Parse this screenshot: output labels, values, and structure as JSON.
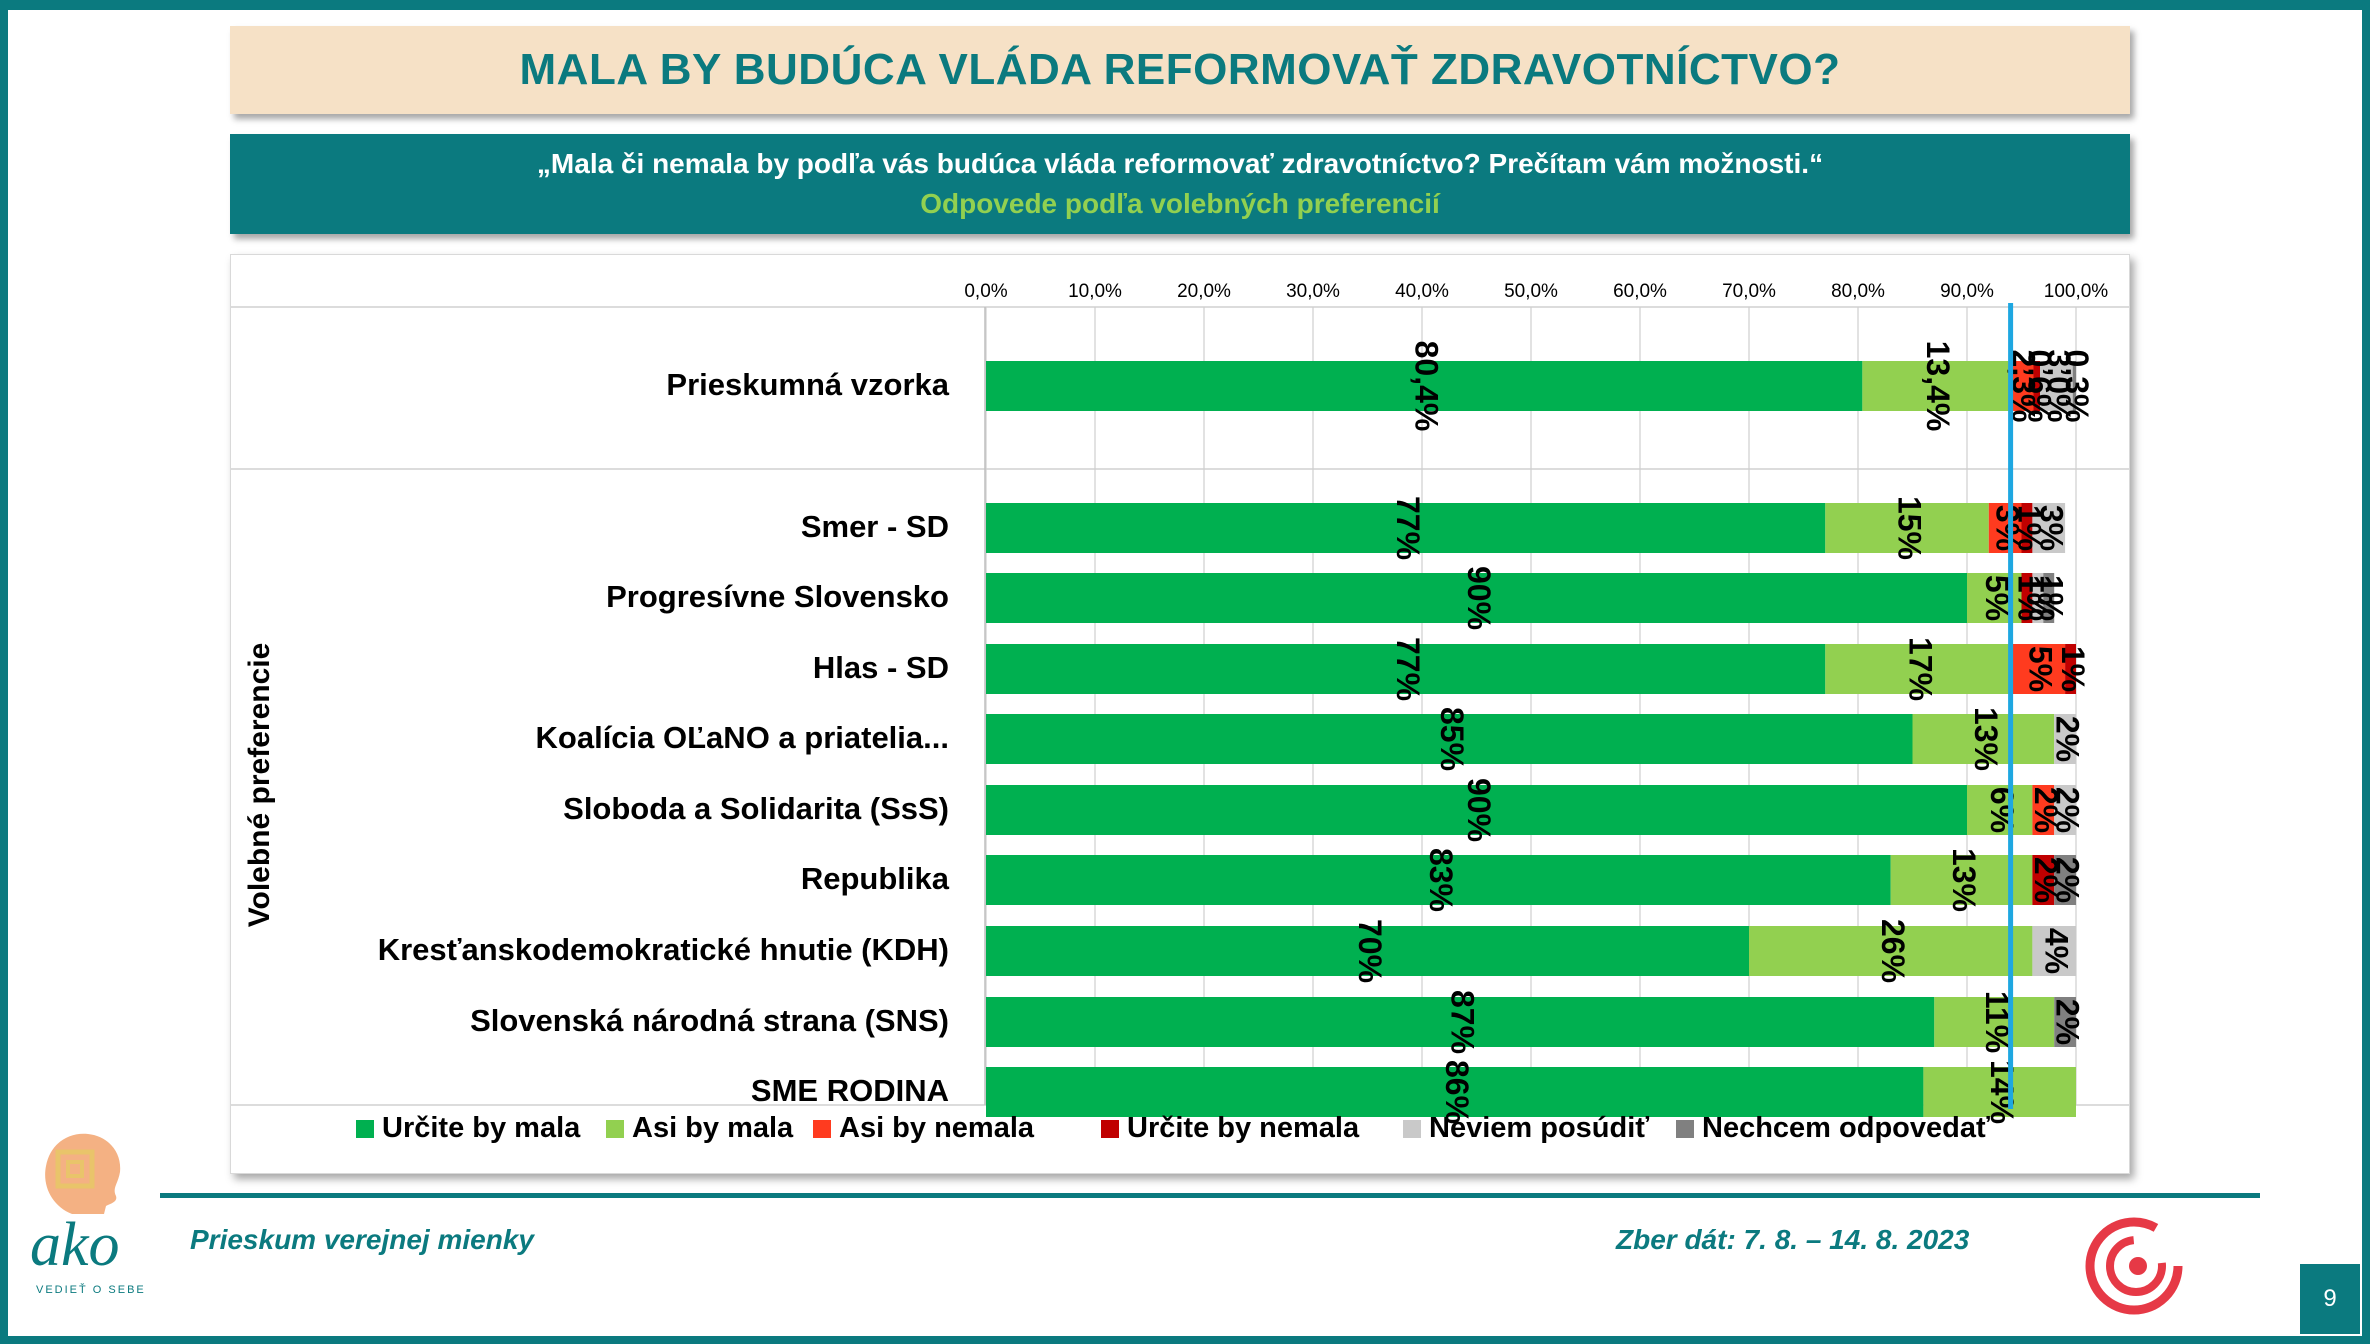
{
  "header": {
    "title": "MALA BY BUDÚCA VLÁDA REFORMOVAŤ ZDRAVOTNÍCTVO?",
    "question": "„Mala či nemala by podľa vás budúca vláda reformovať zdravotníctvo? Prečítam vám možnosti.“",
    "subtitle": "Odpovede podľa volebných preferencií"
  },
  "footer": {
    "left": "Prieskum verejnej mienky",
    "right": "Zber dát: 7. 8. – 14. 8. 2023",
    "page": "9",
    "logo": "ako",
    "logo_tagline": "VEDIEŤ O SEBE"
  },
  "colors": {
    "teal": "#0b7a7f",
    "title_bg": "#f6e1c6",
    "subtitle_green": "#92d050",
    "reference_line": "#1ea7e1"
  },
  "chart_data": {
    "type": "bar",
    "orientation": "horizontal",
    "stacked": true,
    "xlim": [
      0,
      100
    ],
    "x_ticks": [
      "0,0%",
      "10,0%",
      "20,0%",
      "30,0%",
      "40,0%",
      "50,0%",
      "60,0%",
      "70,0%",
      "80,0%",
      "90,0%",
      "100,0%"
    ],
    "grid": true,
    "legend_position": "bottom",
    "group_label": "Volebné preferencie",
    "categories": [
      "Prieskumná vzorka",
      "Smer - SD",
      "Progresívne Slovensko",
      "Hlas - SD",
      "Koalícia OĽaNO a priatelia...",
      "Sloboda a Solidarita (SsS)",
      "Republika",
      "Kresťanskodemokratické hnutie (KDH)",
      "Slovenská národná strana (SNS)",
      "SME RODINA"
    ],
    "series": [
      {
        "name": "Určite by mala",
        "color": "#00b050",
        "values": [
          80.4,
          77,
          90,
          77,
          85,
          90,
          83,
          70,
          87,
          86
        ],
        "labels": [
          "80,4%",
          "77%",
          "90%",
          "77%",
          "85%",
          "90%",
          "83%",
          "70%",
          "87%",
          "86%"
        ]
      },
      {
        "name": "Asi by mala",
        "color": "#92d050",
        "values": [
          13.4,
          15,
          5,
          17,
          13,
          6,
          13,
          26,
          11,
          14
        ],
        "labels": [
          "13,4%",
          "15%",
          "5%",
          "17%",
          "13%",
          "6%",
          "13%",
          "26%",
          "11%",
          "14%"
        ]
      },
      {
        "name": "Asi by nemala",
        "color": "#ff3b1f",
        "values": [
          2.3,
          3,
          0,
          5,
          0,
          2,
          0,
          0,
          0,
          0
        ],
        "labels": [
          "2,3%",
          "3%",
          "",
          "5%",
          "",
          "2%",
          "",
          "",
          "",
          ""
        ]
      },
      {
        "name": "Určite by nemala",
        "color": "#c00000",
        "values": [
          0.6,
          1,
          1,
          1,
          0,
          0,
          2,
          0,
          0,
          0
        ],
        "labels": [
          "0,6%",
          "1%",
          "1%",
          "1%",
          "",
          "",
          "2%",
          "",
          "",
          ""
        ]
      },
      {
        "name": "Neviem posúdiť",
        "color": "#c9c9c9",
        "values": [
          3.0,
          3,
          1,
          0,
          2,
          2,
          0,
          4,
          0,
          0
        ],
        "labels": [
          "3,0%",
          "3%",
          "1%",
          "",
          "2%",
          "2%",
          "",
          "4%",
          "",
          ""
        ]
      },
      {
        "name": "Nechcem odpovedať",
        "color": "#808080",
        "values": [
          0.3,
          0,
          1,
          0,
          0,
          0,
          2,
          0,
          2,
          0
        ],
        "labels": [
          "0,3%",
          "",
          "1%",
          "",
          "",
          "",
          "2%",
          "",
          "2%",
          ""
        ]
      }
    ],
    "reference_line_x": 94
  }
}
